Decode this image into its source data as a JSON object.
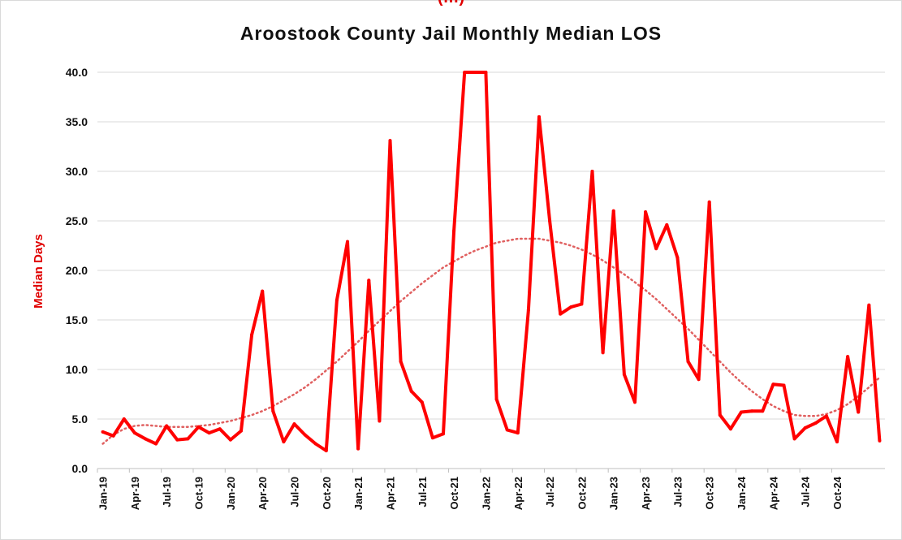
{
  "header": {
    "cut_off_text": "(…)",
    "title": "Aroostook County Jail Monthly Median LOS"
  },
  "colors": {
    "series": "#ff0000",
    "trend": "#e06060",
    "grid": "#d9d9d9",
    "ylabel": "#e00000"
  },
  "chart_data": {
    "type": "line",
    "title": "Aroostook County Jail Monthly Median LOS",
    "xlabel": "",
    "ylabel": "Median Days",
    "ylim": [
      0,
      40
    ],
    "yticks": [
      "0.0",
      "5.0",
      "10.0",
      "15.0",
      "20.0",
      "25.0",
      "30.0",
      "35.0",
      "40.0"
    ],
    "grid": true,
    "x_tick_labels": [
      "Jan-19",
      "Apr-19",
      "Jul-19",
      "Oct-19",
      "Jan-20",
      "Apr-20",
      "Jul-20",
      "Oct-20",
      "Jan-21",
      "Apr-21",
      "Jul-21",
      "Oct-21",
      "Jan-22",
      "Apr-22",
      "Jul-22",
      "Oct-22",
      "Jan-23",
      "Apr-23",
      "Jul-23",
      "Oct-23",
      "Jan-24",
      "Apr-24",
      "Jul-24",
      "Oct-24"
    ],
    "x_tick_every_n_months": 3,
    "series": [
      {
        "values": [
          3.7,
          3.3,
          5.0,
          3.6,
          3.0,
          2.5,
          4.3,
          2.9,
          3.0,
          4.2,
          3.6,
          4.0,
          2.9,
          3.8,
          13.5,
          17.9,
          5.8,
          2.7,
          4.5,
          3.4,
          2.5,
          1.8,
          17.0,
          22.9,
          2.0,
          19.0,
          4.8,
          33.1,
          10.8,
          7.8,
          6.7,
          3.1,
          3.5,
          24.0,
          40.0,
          40.0,
          40.0,
          7.0,
          3.9,
          3.6,
          16.0,
          35.5,
          25.0,
          15.6,
          16.3,
          16.6,
          30.0,
          11.7,
          26.0,
          9.5,
          6.7,
          25.9,
          22.2,
          24.6,
          21.3,
          10.8,
          9.0,
          26.9,
          5.4,
          4.0,
          5.7,
          5.8,
          5.8,
          8.5,
          8.4,
          3.0,
          4.1,
          4.6,
          5.3,
          2.7,
          11.3,
          5.7,
          16.5,
          2.8
        ]
      }
    ],
    "trendline": {
      "type": "polynomial",
      "values": [
        2.5,
        3.4,
        4.0,
        4.3,
        4.4,
        4.3,
        4.2,
        4.2,
        4.2,
        4.3,
        4.4,
        4.6,
        4.8,
        5.1,
        5.4,
        5.8,
        6.3,
        6.9,
        7.5,
        8.2,
        9.0,
        9.9,
        10.8,
        11.8,
        12.8,
        13.9,
        14.9,
        15.9,
        16.9,
        17.8,
        18.7,
        19.5,
        20.3,
        20.9,
        21.5,
        22.0,
        22.4,
        22.8,
        23.0,
        23.2,
        23.2,
        23.2,
        23.0,
        22.8,
        22.5,
        22.1,
        21.6,
        21.0,
        20.3,
        19.6,
        18.8,
        18.0,
        17.1,
        16.1,
        15.1,
        14.1,
        13.0,
        11.9,
        10.8,
        9.7,
        8.7,
        7.8,
        7.0,
        6.3,
        5.8,
        5.4,
        5.3,
        5.3,
        5.5,
        5.9,
        6.5,
        7.3,
        8.2,
        9.2
      ]
    }
  }
}
